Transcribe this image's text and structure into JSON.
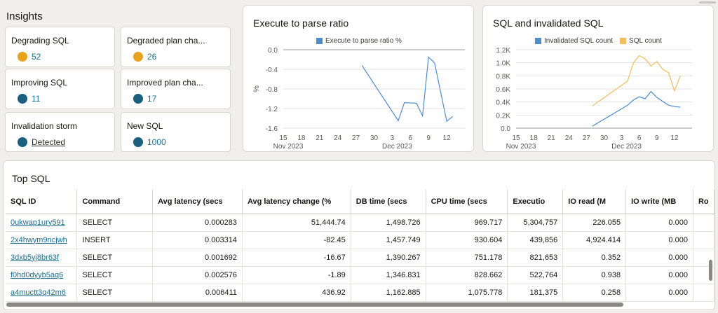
{
  "insights": {
    "title": "Insights",
    "cards": [
      {
        "label": "Degrading SQL",
        "value": "52",
        "dot_color": "#e8a31e"
      },
      {
        "label": "Degraded plan cha...",
        "value": "26",
        "dot_color": "#e8a31e"
      },
      {
        "label": "Improving SQL",
        "value": "11",
        "dot_color": "#1b5f7f"
      },
      {
        "label": "Improved plan cha...",
        "value": "17",
        "dot_color": "#1b5f7f"
      },
      {
        "label": "Invalidation storm",
        "value": "Detected",
        "dot_color": "#1b5f7f"
      },
      {
        "label": "New SQL",
        "value": "1000",
        "dot_color": "#1b5f7f"
      }
    ]
  },
  "colors": {
    "blue": "#4f8cc9",
    "orange": "#f2bd5e",
    "link": "#1b6d8f"
  },
  "chart_data": [
    {
      "type": "line",
      "title": "Execute to parse ratio",
      "ylabel": "%",
      "xlabel": "",
      "x_ticks": [
        "15",
        "18",
        "21",
        "24",
        "27",
        "30",
        "3",
        "6",
        "9",
        "12"
      ],
      "x_groups": [
        "Nov 2023",
        "Dec 2023"
      ],
      "y_ticks": [
        "0.0",
        "-0.4",
        "-0.8",
        "-1.2",
        "-1.6"
      ],
      "ylim": [
        -1.6,
        0.0
      ],
      "grid": true,
      "legend_position": "top",
      "series": [
        {
          "name": "Execute to parse ratio %",
          "color": "#4f8cc9",
          "points": [
            {
              "x": "2023-11-28",
              "y": -0.32
            },
            {
              "x": "2023-12-04",
              "y": -1.45
            },
            {
              "x": "2023-12-05",
              "y": -1.08
            },
            {
              "x": "2023-12-07",
              "y": -1.09
            },
            {
              "x": "2023-12-08",
              "y": -1.35
            },
            {
              "x": "2023-12-09",
              "y": -0.15
            },
            {
              "x": "2023-12-10",
              "y": -0.27
            },
            {
              "x": "2023-12-12",
              "y": -1.46
            },
            {
              "x": "2023-12-13",
              "y": -1.36
            }
          ]
        }
      ]
    },
    {
      "type": "line",
      "title": "SQL and invalidated SQL",
      "xlabel": "",
      "ylabel": "",
      "x_ticks": [
        "15",
        "18",
        "21",
        "24",
        "27",
        "30",
        "3",
        "6",
        "9",
        "12"
      ],
      "x_groups": [
        "Nov 2023",
        "Dec 2023"
      ],
      "y_ticks": [
        "1.2K",
        "1.0K",
        "0.8K",
        "0.6K",
        "0.4K",
        "0.2K",
        "0.0"
      ],
      "ylim": [
        0,
        1200
      ],
      "grid": true,
      "legend_position": "top",
      "series": [
        {
          "name": "Invalidated SQL count",
          "color": "#4f8cc9",
          "points": [
            {
              "x": "2023-11-28",
              "y": 30
            },
            {
              "x": "2023-12-04",
              "y": 350
            },
            {
              "x": "2023-12-05",
              "y": 430
            },
            {
              "x": "2023-12-06",
              "y": 480
            },
            {
              "x": "2023-12-07",
              "y": 450
            },
            {
              "x": "2023-12-08",
              "y": 560
            },
            {
              "x": "2023-12-09",
              "y": 470
            },
            {
              "x": "2023-12-11",
              "y": 350
            },
            {
              "x": "2023-12-12",
              "y": 330
            },
            {
              "x": "2023-12-13",
              "y": 320
            }
          ]
        },
        {
          "name": "SQL count",
          "color": "#f2bd5e",
          "points": [
            {
              "x": "2023-11-28",
              "y": 340
            },
            {
              "x": "2023-12-04",
              "y": 720
            },
            {
              "x": "2023-12-05",
              "y": 1000
            },
            {
              "x": "2023-12-06",
              "y": 1110
            },
            {
              "x": "2023-12-07",
              "y": 1060
            },
            {
              "x": "2023-12-08",
              "y": 950
            },
            {
              "x": "2023-12-09",
              "y": 1020
            },
            {
              "x": "2023-12-10",
              "y": 900
            },
            {
              "x": "2023-12-11",
              "y": 850
            },
            {
              "x": "2023-12-12",
              "y": 570
            },
            {
              "x": "2023-12-13",
              "y": 800
            }
          ]
        }
      ]
    }
  ],
  "top_sql": {
    "title": "Top SQL",
    "columns": [
      "SQL ID",
      "Command",
      "Avg latency (secs",
      "Avg latency change (%",
      "DB time (secs",
      "CPU time (secs",
      "Executio",
      "IO read (M",
      "IO write (MB",
      "Ro"
    ],
    "rows": [
      [
        "0ukwap1ury591",
        "SELECT",
        "0.000283",
        "51,444.74",
        "1,498.726",
        "969.717",
        "5,304,757",
        "226.055",
        "0.000",
        ""
      ],
      [
        "2x4hwym9ncjwh",
        "INSERT",
        "0.003314",
        "-82.45",
        "1,457.749",
        "930.604",
        "439,856",
        "4,924.414",
        "0.000",
        ""
      ],
      [
        "3dxb5yj8br63f",
        "SELECT",
        "0.001692",
        "-16.67",
        "1,390.267",
        "751.178",
        "821,653",
        "0.352",
        "0.000",
        ""
      ],
      [
        "f0hd0dyyb5aq6",
        "SELECT",
        "0.002576",
        "-1.89",
        "1,346.831",
        "828.662",
        "522,764",
        "0.938",
        "0.000",
        ""
      ],
      [
        "a4muctt3q42m6",
        "SELECT",
        "0.006411",
        "436.92",
        "1,162.885",
        "1,075.778",
        "181,375",
        "0.258",
        "0.000",
        ""
      ]
    ]
  }
}
